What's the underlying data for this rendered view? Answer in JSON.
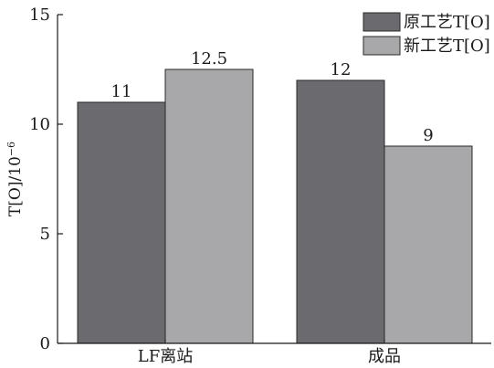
{
  "chart_data": {
    "type": "bar",
    "categories": [
      "LF离站",
      "成品"
    ],
    "series": [
      {
        "name": "原工艺T[O]",
        "values": [
          11,
          12
        ],
        "color": "#6b6b6f"
      },
      {
        "name": "新工艺T[O]",
        "values": [
          12.5,
          9
        ],
        "color": "#a8a8ab"
      }
    ],
    "data_labels": [
      [
        "11",
        "12"
      ],
      [
        "12.5",
        "9"
      ]
    ],
    "ylabel": "T[O]/10",
    "ylabel_exponent": "−6",
    "ylim": [
      0,
      15
    ],
    "yticks": [
      "0",
      "5",
      "10",
      "15"
    ],
    "grid": false,
    "legend_position": "top-right"
  }
}
